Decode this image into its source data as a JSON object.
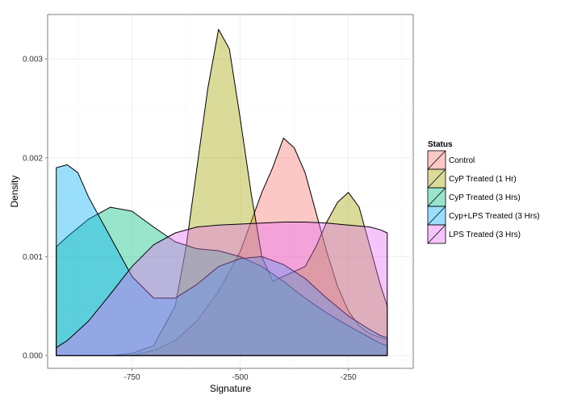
{
  "chart_data": {
    "type": "area",
    "xlabel": "Signature",
    "ylabel": "Density",
    "xlim": [
      -945,
      -100
    ],
    "ylim": [
      -0.00013,
      0.00345
    ],
    "x_ticks": [
      {
        "value": -750,
        "label": "-750"
      },
      {
        "value": -500,
        "label": "-500"
      },
      {
        "value": -250,
        "label": "-250"
      }
    ],
    "y_ticks": [
      {
        "value": 0.0,
        "label": "0.000"
      },
      {
        "value": 0.001,
        "label": "0.001"
      },
      {
        "value": 0.002,
        "label": "0.002"
      },
      {
        "value": 0.003,
        "label": "0.003"
      }
    ],
    "grid": true,
    "legend": {
      "title": "Status",
      "position": "right"
    },
    "series": [
      {
        "name": "Control",
        "color": "#F8766D",
        "points": [
          [
            -925,
            0.0
          ],
          [
            -850,
            0.0
          ],
          [
            -800,
            0.0
          ],
          [
            -750,
            0.0
          ],
          [
            -700,
            5e-05
          ],
          [
            -650,
            0.00015
          ],
          [
            -600,
            0.00035
          ],
          [
            -550,
            0.00065
          ],
          [
            -500,
            0.00105
          ],
          [
            -475,
            0.00135
          ],
          [
            -450,
            0.00165
          ],
          [
            -425,
            0.0019
          ],
          [
            -400,
            0.0022
          ],
          [
            -375,
            0.0021
          ],
          [
            -350,
            0.00185
          ],
          [
            -325,
            0.00145
          ],
          [
            -300,
            0.00105
          ],
          [
            -275,
            0.0007
          ],
          [
            -250,
            0.00045
          ],
          [
            -225,
            0.0003
          ],
          [
            -200,
            0.00022
          ],
          [
            -175,
            0.00018
          ],
          [
            -160,
            0.00016
          ]
        ]
      },
      {
        "name": "CyP Treated (1 Hr)",
        "color": "#A3A500",
        "points": [
          [
            -925,
            0.0
          ],
          [
            -850,
            0.0
          ],
          [
            -800,
            0.0
          ],
          [
            -750,
            2e-05
          ],
          [
            -700,
            0.0001
          ],
          [
            -650,
            0.0005
          ],
          [
            -625,
            0.0011
          ],
          [
            -600,
            0.0019
          ],
          [
            -575,
            0.0027
          ],
          [
            -550,
            0.0033
          ],
          [
            -525,
            0.0031
          ],
          [
            -500,
            0.0024
          ],
          [
            -475,
            0.00165
          ],
          [
            -450,
            0.001
          ],
          [
            -425,
            0.00075
          ],
          [
            -400,
            0.0008
          ],
          [
            -375,
            0.00085
          ],
          [
            -350,
            0.0009
          ],
          [
            -325,
            0.0011
          ],
          [
            -300,
            0.00135
          ],
          [
            -275,
            0.00155
          ],
          [
            -250,
            0.00165
          ],
          [
            -225,
            0.0015
          ],
          [
            -200,
            0.0011
          ],
          [
            -175,
            0.0007
          ],
          [
            -160,
            0.0005
          ]
        ]
      },
      {
        "name": "CyP Treated (3 Hrs)",
        "color": "#00BF7D",
        "points": [
          [
            -925,
            0.0011
          ],
          [
            -900,
            0.0012
          ],
          [
            -850,
            0.00138
          ],
          [
            -800,
            0.0015
          ],
          [
            -750,
            0.00146
          ],
          [
            -700,
            0.0013
          ],
          [
            -650,
            0.00115
          ],
          [
            -600,
            0.00108
          ],
          [
            -550,
            0.00106
          ],
          [
            -500,
            0.001
          ],
          [
            -450,
            0.0009
          ],
          [
            -400,
            0.00075
          ],
          [
            -350,
            0.00058
          ],
          [
            -300,
            0.00043
          ],
          [
            -250,
            0.0003
          ],
          [
            -200,
            0.00018
          ],
          [
            -175,
            0.00012
          ],
          [
            -160,
            0.0001
          ]
        ]
      },
      {
        "name": "Cyp+LPS Treated (3 Hrs)",
        "color": "#00B0F6",
        "points": [
          [
            -925,
            0.0019
          ],
          [
            -900,
            0.00193
          ],
          [
            -875,
            0.00185
          ],
          [
            -850,
            0.0016
          ],
          [
            -800,
            0.0012
          ],
          [
            -750,
            0.0008
          ],
          [
            -700,
            0.00058
          ],
          [
            -650,
            0.00058
          ],
          [
            -600,
            0.00072
          ],
          [
            -550,
            0.0009
          ],
          [
            -500,
            0.00098
          ],
          [
            -450,
            0.001
          ],
          [
            -400,
            0.00092
          ],
          [
            -350,
            0.00078
          ],
          [
            -300,
            0.00058
          ],
          [
            -250,
            0.0004
          ],
          [
            -200,
            0.00026
          ],
          [
            -175,
            0.0002
          ],
          [
            -160,
            0.00018
          ]
        ]
      },
      {
        "name": "LPS Treated (3 Hrs)",
        "color": "#E76BF3",
        "points": [
          [
            -925,
            8e-05
          ],
          [
            -900,
            0.00015
          ],
          [
            -850,
            0.00035
          ],
          [
            -800,
            0.00062
          ],
          [
            -750,
            0.0009
          ],
          [
            -700,
            0.00112
          ],
          [
            -650,
            0.00124
          ],
          [
            -600,
            0.0013
          ],
          [
            -550,
            0.00132
          ],
          [
            -500,
            0.00133
          ],
          [
            -450,
            0.00134
          ],
          [
            -400,
            0.00135
          ],
          [
            -350,
            0.00135
          ],
          [
            -300,
            0.00134
          ],
          [
            -250,
            0.00132
          ],
          [
            -200,
            0.0013
          ],
          [
            -175,
            0.00127
          ],
          [
            -160,
            0.00124
          ]
        ]
      }
    ]
  }
}
